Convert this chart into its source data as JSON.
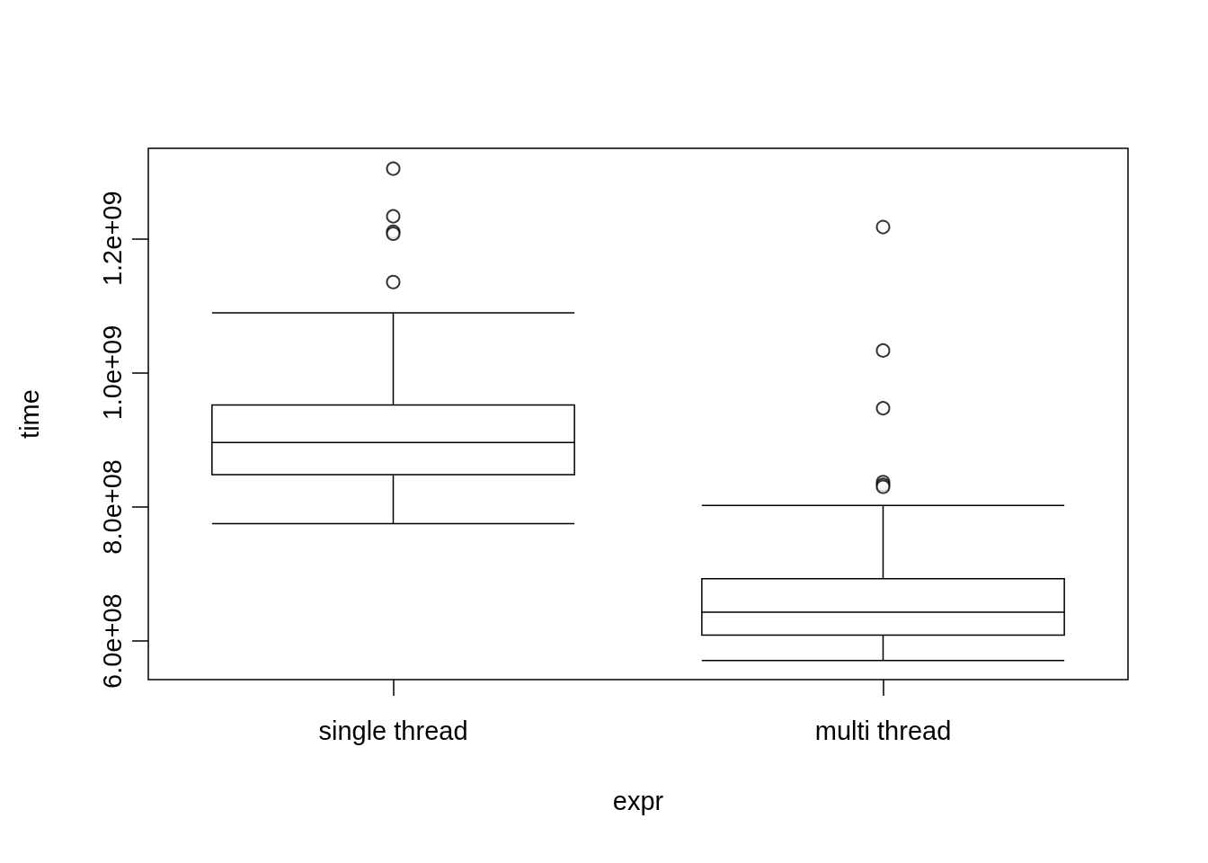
{
  "chart_data": {
    "type": "box",
    "xlabel": "expr",
    "ylabel": "time",
    "categories": [
      "single thread",
      "multi thread"
    ],
    "boxes": [
      {
        "low": 775000000,
        "q1": 848000000,
        "median": 896000000,
        "q3": 952000000,
        "high": 1089000000,
        "outliers": [
          1304000000,
          1233000000,
          1210000000,
          1207000000,
          1135000000
        ]
      },
      {
        "low": 571000000,
        "q1": 609000000,
        "median": 643000000,
        "q3": 693000000,
        "high": 802000000,
        "outliers": [
          1217000000,
          1033000000,
          947000000,
          837000000,
          833000000,
          830000000
        ]
      }
    ],
    "ylim": [
      542600000,
      1334300000
    ],
    "yticks": [
      {
        "value": 600000000,
        "label": "6.0e+08"
      },
      {
        "value": 800000000,
        "label": "8.0e+08"
      },
      {
        "value": 1000000000,
        "label": "1.0e+09"
      },
      {
        "value": 1200000000,
        "label": "1.2e+09"
      }
    ]
  }
}
